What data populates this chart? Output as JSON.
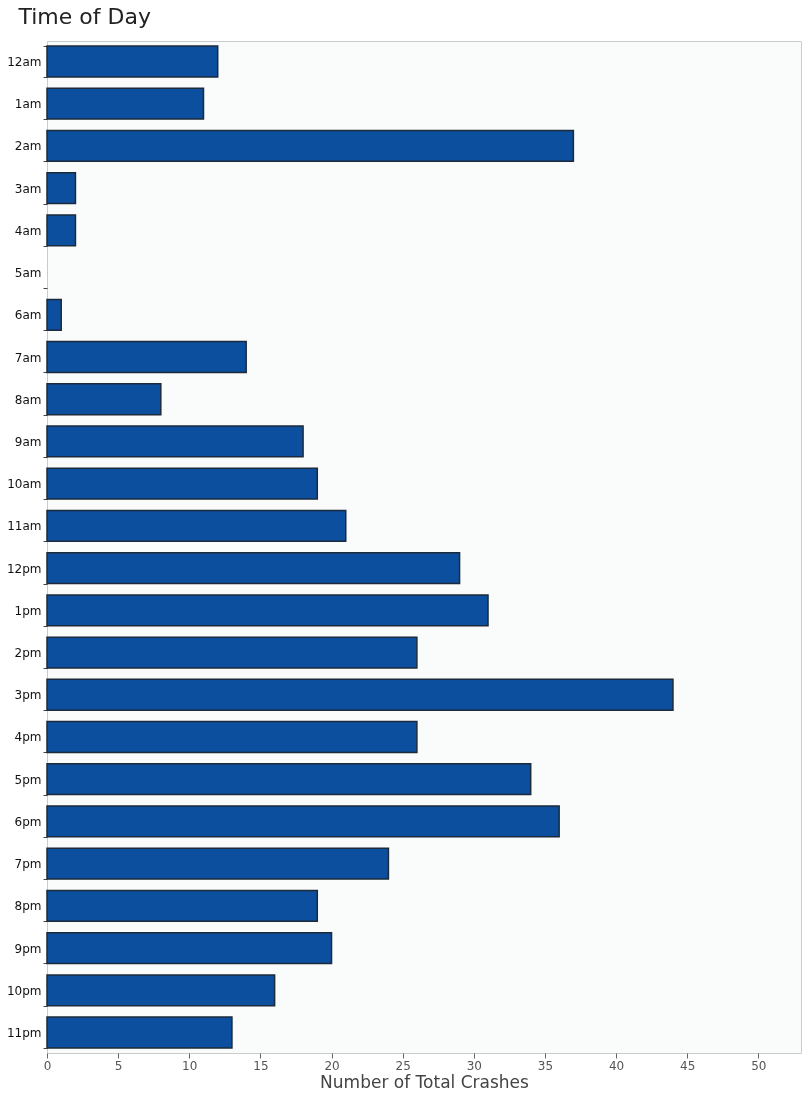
{
  "chart_data": {
    "type": "bar",
    "orientation": "horizontal",
    "title": "Time of Day",
    "xlabel": "Number of Total Crashes",
    "categories": [
      "12am",
      "1am",
      "2am",
      "3am",
      "4am",
      "5am",
      "6am",
      "7am",
      "8am",
      "9am",
      "10am",
      "11am",
      "12pm",
      "1pm",
      "2pm",
      "3pm",
      "4pm",
      "5pm",
      "6pm",
      "7pm",
      "8pm",
      "9pm",
      "10pm",
      "11pm"
    ],
    "values": [
      12,
      11,
      37,
      2,
      2,
      0,
      1,
      14,
      8,
      18,
      19,
      21,
      29,
      31,
      26,
      44,
      26,
      34,
      36,
      24,
      19,
      20,
      16,
      13
    ],
    "color": "#0b4f9e",
    "xlim": [
      0,
      53
    ],
    "xticks": [
      0,
      5,
      10,
      15,
      20,
      25,
      30,
      35,
      40,
      45,
      50
    ]
  }
}
